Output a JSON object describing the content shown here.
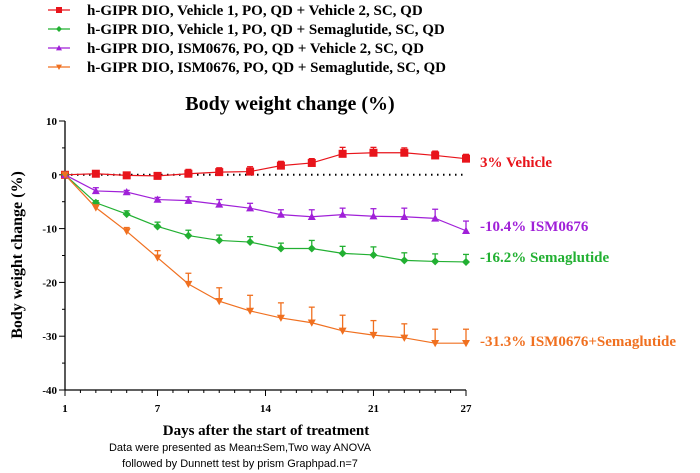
{
  "chart_data": {
    "type": "line",
    "title": "Body weight change (%)",
    "xlabel": "Days after the start of treatment",
    "ylabel": "Body weight change (%)",
    "xlim": [
      1,
      27
    ],
    "ylim": [
      -40,
      10
    ],
    "xticks": [
      1,
      7,
      14,
      21,
      27
    ],
    "yticks": [
      10,
      0,
      -10,
      -20,
      -30,
      -40
    ],
    "reference_line": 0,
    "grid": false,
    "legend_position": "top-left",
    "x": [
      1,
      3,
      5,
      7,
      9,
      11,
      13,
      15,
      17,
      19,
      21,
      23,
      25,
      27
    ],
    "series": [
      {
        "name": "h-GIPR DIO, Vehicle 1, PO, QD + Vehicle 2, SC, QD",
        "color": "#e8141b",
        "marker": "square",
        "values": [
          0,
          0.2,
          -0.1,
          -0.2,
          0.2,
          0.5,
          0.6,
          1.7,
          2.2,
          3.9,
          4.1,
          4.1,
          3.6,
          3.0
        ],
        "errors": [
          0,
          0.3,
          0.4,
          0.3,
          0.8,
          0.8,
          0.9,
          0.8,
          0.8,
          1.2,
          1.0,
          0.9,
          0.8,
          0.8
        ],
        "annotation": "3% Vehicle"
      },
      {
        "name": "h-GIPR DIO, Vehicle 1, PO, QD + Semaglutide, SC, QD",
        "color": "#22b032",
        "marker": "diamond",
        "values": [
          0,
          -5.2,
          -7.3,
          -9.6,
          -11.3,
          -12.2,
          -12.5,
          -13.7,
          -13.7,
          -14.6,
          -14.9,
          -15.9,
          -16.1,
          -16.2
        ],
        "errors": [
          0,
          0.4,
          0.6,
          0.8,
          1.0,
          1.0,
          1.0,
          1.0,
          1.5,
          1.3,
          1.5,
          1.4,
          1.4,
          1.4
        ],
        "annotation": "-16.2% Semaglutide"
      },
      {
        "name": "h-GIPR DIO, ISM0676, PO, QD + Vehicle 2, SC, QD",
        "color": "#a020d8",
        "marker": "triangle-up",
        "values": [
          0,
          -3.0,
          -3.2,
          -4.6,
          -4.8,
          -5.5,
          -6.2,
          -7.4,
          -7.8,
          -7.4,
          -7.7,
          -7.8,
          -8.1,
          -10.4
        ],
        "errors": [
          0,
          0.6,
          0.3,
          0.4,
          0.7,
          0.9,
          0.9,
          0.9,
          1.3,
          1.2,
          1.4,
          1.6,
          1.7,
          1.8
        ],
        "annotation": "-10.4%  ISM0676"
      },
      {
        "name": "h-GIPR DIO, ISM0676, PO, QD + Semaglutide, SC, QD",
        "color": "#f07020",
        "marker": "triangle-down",
        "values": [
          0,
          -6.1,
          -10.5,
          -15.4,
          -20.3,
          -23.5,
          -25.3,
          -26.6,
          -27.5,
          -29.0,
          -29.8,
          -30.3,
          -31.3,
          -31.3
        ],
        "errors": [
          0,
          0.5,
          0.7,
          1.3,
          2.0,
          2.5,
          2.9,
          2.8,
          2.9,
          2.9,
          2.7,
          2.6,
          2.6,
          2.6
        ],
        "annotation": "-31.3% ISM0676+Semaglutide"
      }
    ],
    "footnote": [
      "Data were presented as Mean±Sem,Two way ANOVA",
      "followed by Dunnett test by prism Graphpad.n=7"
    ]
  }
}
